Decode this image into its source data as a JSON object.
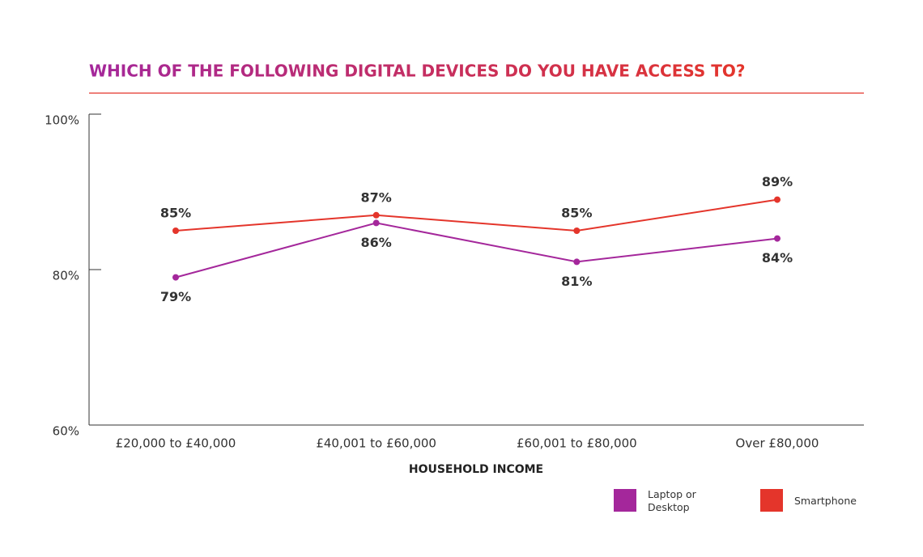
{
  "chart_data": {
    "type": "line",
    "title": "WHICH OF THE FOLLOWING DIGITAL DEVICES DO YOU HAVE ACCESS TO?",
    "x_label": "HOUSEHOLD INCOME",
    "categories": [
      "£20,000 to £40,000",
      "£40,001 to £60,000",
      "£60,001 to £80,000",
      "Over £80,000"
    ],
    "series": [
      {
        "name": "Laptop or Desktop",
        "color": "#a4279b",
        "values": [
          79,
          86,
          81,
          84
        ],
        "value_labels": [
          "79%",
          "86%",
          "81%",
          "84%"
        ]
      },
      {
        "name": "Smartphone",
        "color": "#e4352b",
        "values": [
          85,
          87,
          85,
          89
        ],
        "value_labels": [
          "85%",
          "87%",
          "85%",
          "89%"
        ]
      }
    ],
    "ylim": [
      60,
      100
    ],
    "yticks": [
      {
        "value": 60,
        "label": "60%"
      },
      {
        "value": 80,
        "label": "80%"
      },
      {
        "value": 100,
        "label": "100%"
      }
    ],
    "grid": false,
    "legend": "bottom-right"
  }
}
